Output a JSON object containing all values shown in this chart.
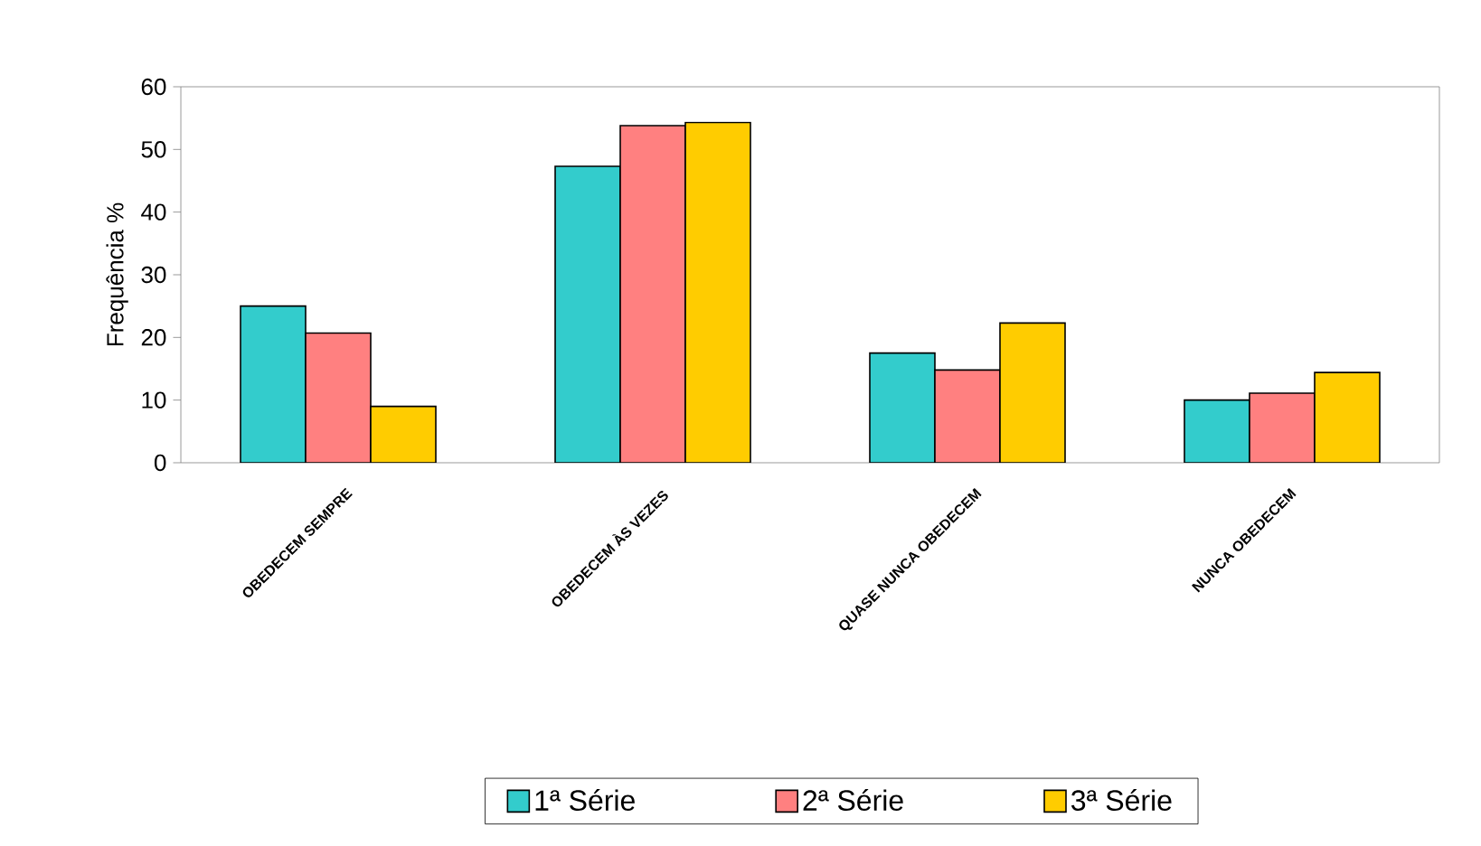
{
  "chart_data": {
    "type": "bar",
    "ylabel": "Frequência %",
    "categories": [
      "OBEDECEM SEMPRE",
      "OBEDECEM ÀS VEZES",
      "QUASE NUNCA OBEDECEM",
      "NUNCA OBEDECEM"
    ],
    "series": [
      {
        "name": "1ª Série",
        "color": "#33cccc",
        "values": [
          25,
          47.3,
          17.5,
          10
        ]
      },
      {
        "name": "2ª Série",
        "color": "#ff8080",
        "values": [
          20.7,
          53.8,
          14.8,
          11.1
        ]
      },
      {
        "name": "3ª Série",
        "color": "#ffcc00",
        "values": [
          9,
          54.3,
          22.3,
          14.4
        ]
      }
    ],
    "ylim": [
      0,
      60
    ],
    "yticks": [
      0,
      10,
      20,
      30,
      40,
      50,
      60
    ],
    "legend": "bottom"
  }
}
